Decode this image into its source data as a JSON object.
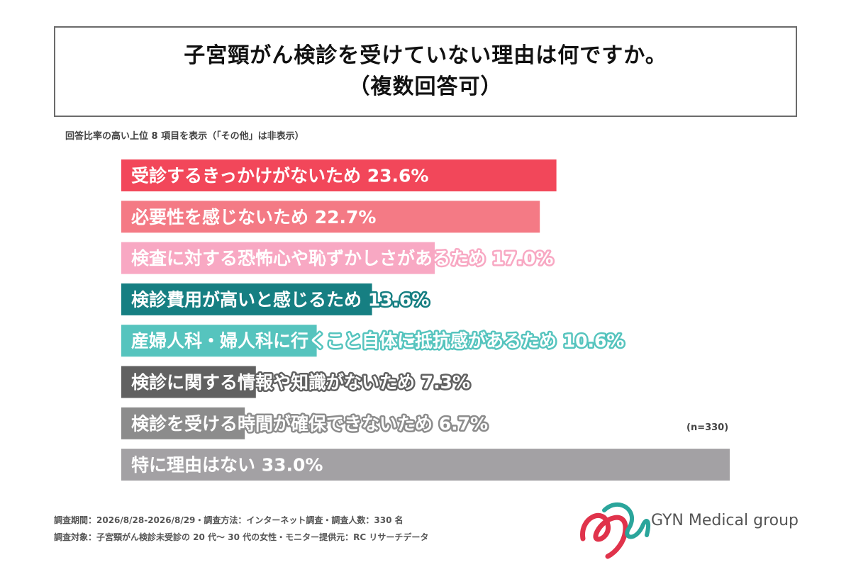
{
  "title": {
    "line1": "子宮頸がん検診を受けていない理由は何ですか。",
    "line2": "（複数回答可）"
  },
  "chart_note": "回答比率の高い上位 8 項目を表示（「その他」は非表示）",
  "chart_data": {
    "type": "bar",
    "orientation": "horizontal",
    "categories": [
      "受診するきっかけがないため",
      "必要性を感じないため",
      "検査に対する恐怖心や恥ずかしさがあるため",
      "検診費用が高いと感じるため",
      "産婦人科・婦人科に行くこと自体に抵抗感があるため",
      "検診に関する情報や知識がないため",
      "検診を受ける時間が確保できないため",
      "特に理由はない"
    ],
    "values": [
      23.6,
      22.7,
      17.0,
      13.6,
      10.6,
      7.3,
      6.7,
      33.0
    ],
    "value_labels": [
      "23.6%",
      "22.7%",
      "17.0%",
      "13.6%",
      "10.6%",
      "7.3%",
      "6.7%",
      "33.0%"
    ],
    "colors": [
      "#f2475a",
      "#f47a85",
      "#f8a8c3",
      "#167f82",
      "#56c4be",
      "#616161",
      "#8c8c8c",
      "#a3a1a4"
    ],
    "xlim": [
      0,
      33.0
    ],
    "grid": false,
    "legend": "none"
  },
  "sample_note": "(n=330)",
  "footer": {
    "line1": "調査期間：2026/8/28-2026/8/29・調査方法：インターネット調査・調査人数：330 名",
    "line2": "調査対象：子宮頸がん検診未受診の 20 代〜 30 代の女性・モニター提供元：RC リサーチデータ"
  },
  "logo": {
    "text": "GYN Medical group",
    "colors": [
      "#e0334b",
      "#2aa59b"
    ]
  }
}
